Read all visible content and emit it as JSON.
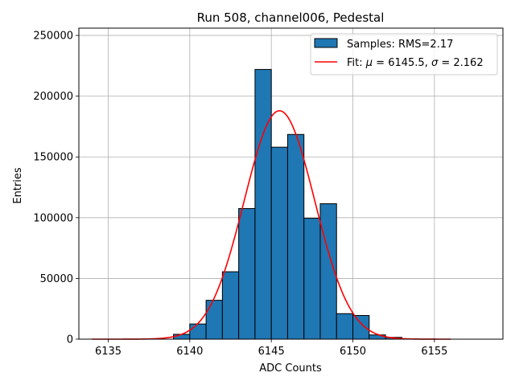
{
  "chart_data": {
    "type": "bar",
    "title": "Run 508, channel006, Pedestal",
    "xlabel": "ADC Counts",
    "ylabel": "Entries",
    "xlim": [
      6133.2,
      6159.2
    ],
    "ylim": [
      0,
      256000
    ],
    "xticks": [
      6135,
      6140,
      6145,
      6150,
      6155
    ],
    "yticks": [
      0,
      50000,
      100000,
      150000,
      200000,
      250000
    ],
    "grid": true,
    "legend_position": "top-right",
    "histogram": {
      "name": "Samples: RMS=2.17",
      "color": "#1f77b4",
      "edgecolor": "#000000",
      "bin_width": 1,
      "bins": [
        {
          "left": 6139,
          "value": 4000
        },
        {
          "left": 6140,
          "value": 12500
        },
        {
          "left": 6141,
          "value": 32000
        },
        {
          "left": 6142,
          "value": 55500
        },
        {
          "left": 6143,
          "value": 107500
        },
        {
          "left": 6144,
          "value": 222000
        },
        {
          "left": 6145,
          "value": 158000
        },
        {
          "left": 6146,
          "value": 168500
        },
        {
          "left": 6147,
          "value": 99500
        },
        {
          "left": 6148,
          "value": 111500
        },
        {
          "left": 6149,
          "value": 21000
        },
        {
          "left": 6150,
          "value": 19500
        },
        {
          "left": 6151,
          "value": 3500
        },
        {
          "left": 6152,
          "value": 1500
        },
        {
          "left": 6153,
          "value": 300
        }
      ]
    },
    "fit": {
      "name_prefix": "Fit: ",
      "mu_symbol": "μ",
      "mu_text": " = 6145.5, ",
      "sigma_symbol": "σ",
      "sigma_text": " = 2.162",
      "mu": 6145.5,
      "sigma": 2.162,
      "amplitude": 188000,
      "x_range": [
        6134,
        6156
      ],
      "color": "#ff0000"
    }
  }
}
